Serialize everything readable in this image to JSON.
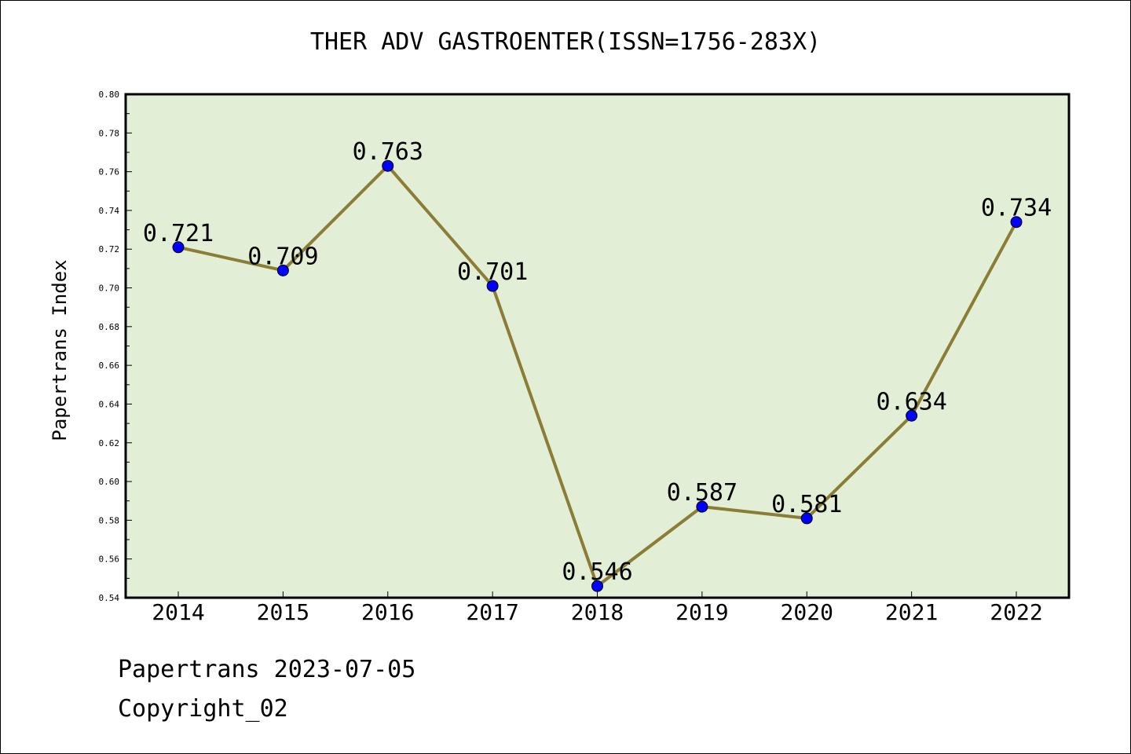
{
  "title": "THER ADV GASTROENTER(ISSN=1756-283X)",
  "footer": {
    "line1": "Papertrans 2023-07-05",
    "line2": "Copyright_02"
  },
  "colors": {
    "plot_bg": "#e2efd6",
    "line": "#8b7d35",
    "marker": "#0000ff"
  },
  "chart_data": {
    "type": "line",
    "ylabel": "Papertrans Index",
    "xlabel": "",
    "ylim": [
      0.54,
      0.8
    ],
    "yticks": [
      "0.54",
      "0.56",
      "0.58",
      "0.60",
      "0.62",
      "0.64",
      "0.66",
      "0.68",
      "0.70",
      "0.72",
      "0.74",
      "0.76",
      "0.78",
      "0.80"
    ],
    "categories": [
      "2014",
      "2015",
      "2016",
      "2017",
      "2018",
      "2019",
      "2020",
      "2021",
      "2022"
    ],
    "series": [
      {
        "values": [
          0.721,
          0.709,
          0.763,
          0.701,
          0.546,
          0.587,
          0.581,
          0.634,
          0.734
        ],
        "labels": [
          "0.721",
          "0.709",
          "0.763",
          "0.701",
          "0.546",
          "0.587",
          "0.581",
          "0.634",
          "0.734"
        ]
      }
    ],
    "grid": false,
    "legend": "none"
  }
}
